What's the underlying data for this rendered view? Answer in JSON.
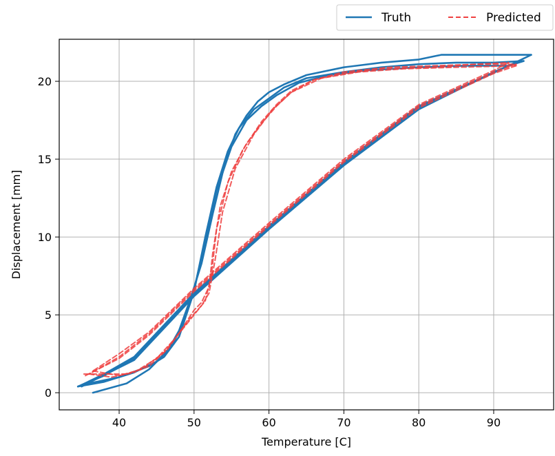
{
  "chart_data": {
    "type": "line",
    "title": "",
    "xlabel": "Temperature [C]",
    "ylabel": "Displacement [mm]",
    "xlim": [
      32,
      98
    ],
    "ylim": [
      -1.1,
      22.7
    ],
    "xticks": [
      40,
      50,
      60,
      70,
      80,
      90
    ],
    "yticks": [
      0,
      5,
      10,
      15,
      20
    ],
    "grid": true,
    "legend": {
      "placement": "top-right, above plot",
      "ncol": 2
    },
    "series": [
      {
        "name": "Truth",
        "color": "#1f77b4",
        "style": "solid",
        "segments": [
          [
            [
              36.5,
              0.0
            ],
            [
              41,
              0.6
            ],
            [
              44,
              1.5
            ],
            [
              46.5,
              2.7
            ],
            [
              48,
              4.0
            ],
            [
              49.5,
              6.0
            ],
            [
              51,
              8.3
            ],
            [
              52.5,
              11.5
            ],
            [
              54,
              14.5
            ],
            [
              55.5,
              16.6
            ],
            [
              57,
              17.8
            ],
            [
              58.5,
              18.7
            ],
            [
              60,
              19.3
            ],
            [
              62,
              19.8
            ],
            [
              65,
              20.4
            ],
            [
              70,
              20.9
            ],
            [
              75,
              21.2
            ],
            [
              80,
              21.4
            ],
            [
              83,
              21.7
            ],
            [
              88,
              21.7
            ],
            [
              95,
              21.7
            ]
          ],
          [
            [
              95,
              21.7
            ],
            [
              92,
              21.0
            ],
            [
              80,
              18.4
            ],
            [
              70,
              14.8
            ],
            [
              60,
              10.7
            ],
            [
              50,
              6.4
            ],
            [
              42,
              2.3
            ],
            [
              38,
              1.2
            ],
            [
              35,
              0.5
            ]
          ],
          [
            [
              35,
              0.5
            ],
            [
              40,
              1.0
            ],
            [
              44,
              1.7
            ],
            [
              46,
              2.3
            ],
            [
              48,
              3.6
            ],
            [
              50,
              6.5
            ],
            [
              51.5,
              10.0
            ],
            [
              53,
              13.2
            ],
            [
              54.5,
              15.5
            ],
            [
              56,
              17.0
            ],
            [
              58,
              18.2
            ],
            [
              60,
              18.9
            ],
            [
              62,
              19.6
            ],
            [
              65,
              20.2
            ],
            [
              70,
              20.6
            ],
            [
              75,
              20.9
            ],
            [
              80,
              21.1
            ],
            [
              85,
              21.2
            ],
            [
              90,
              21.2
            ],
            [
              94,
              21.3
            ]
          ],
          [
            [
              94,
              21.3
            ],
            [
              92,
              21.0
            ],
            [
              80,
              18.3
            ],
            [
              70,
              14.7
            ],
            [
              60,
              10.6
            ],
            [
              50,
              6.3
            ],
            [
              42,
              2.2
            ],
            [
              38,
              1.1
            ],
            [
              34.5,
              0.4
            ]
          ],
          [
            [
              34.5,
              0.4
            ],
            [
              38,
              0.7
            ],
            [
              42,
              1.3
            ],
            [
              45,
              2.0
            ],
            [
              47,
              3.0
            ],
            [
              48.5,
              4.4
            ],
            [
              50,
              6.6
            ],
            [
              51.5,
              9.8
            ],
            [
              53,
              13.0
            ],
            [
              55,
              15.8
            ],
            [
              57,
              17.5
            ],
            [
              59,
              18.4
            ],
            [
              61,
              19.1
            ],
            [
              64,
              19.9
            ],
            [
              68,
              20.4
            ],
            [
              73,
              20.7
            ],
            [
              80,
              20.9
            ],
            [
              86,
              21.0
            ],
            [
              92,
              21.0
            ]
          ],
          [
            [
              92,
              21.0
            ],
            [
              90,
              20.6
            ],
            [
              80,
              18.2
            ],
            [
              70,
              14.6
            ],
            [
              60,
              10.5
            ],
            [
              50,
              6.2
            ],
            [
              42,
              2.1
            ],
            [
              37,
              0.9
            ],
            [
              35,
              0.4
            ]
          ]
        ]
      },
      {
        "name": "Predicted",
        "color": "#ef4040",
        "style": "dashed",
        "segments": [
          [
            [
              35.3,
              1.2
            ],
            [
              38,
              1.2
            ],
            [
              41,
              1.2
            ],
            [
              44,
              1.7
            ],
            [
              46.5,
              2.8
            ],
            [
              48.5,
              4.2
            ],
            [
              50,
              5.3
            ],
            [
              51,
              5.8
            ],
            [
              52,
              6.8
            ],
            [
              52.5,
              9.0
            ],
            [
              53.5,
              12.0
            ],
            [
              55,
              14.2
            ],
            [
              57,
              16.0
            ],
            [
              59,
              17.3
            ],
            [
              61,
              18.4
            ],
            [
              63,
              19.3
            ],
            [
              66,
              20.1
            ],
            [
              70,
              20.5
            ],
            [
              75,
              20.8
            ],
            [
              82,
              20.9
            ],
            [
              88,
              21.1
            ],
            [
              92,
              21.2
            ]
          ],
          [
            [
              92,
              21.2
            ],
            [
              90,
              20.7
            ],
            [
              80,
              18.5
            ],
            [
              70,
              15.0
            ],
            [
              60,
              10.9
            ],
            [
              50,
              6.7
            ],
            [
              44,
              3.9
            ],
            [
              40,
              2.5
            ],
            [
              36.5,
              1.4
            ]
          ],
          [
            [
              36.5,
              1.4
            ],
            [
              40,
              1.1
            ],
            [
              43,
              1.5
            ],
            [
              46,
              2.6
            ],
            [
              48,
              3.8
            ],
            [
              50,
              5.0
            ],
            [
              51.5,
              5.9
            ],
            [
              52.3,
              7.5
            ],
            [
              53,
              10.5
            ],
            [
              54.5,
              13.5
            ],
            [
              56.5,
              15.6
            ],
            [
              59,
              17.4
            ],
            [
              61,
              18.5
            ],
            [
              63,
              19.4
            ],
            [
              66,
              20.1
            ],
            [
              70,
              20.6
            ],
            [
              76,
              20.9
            ],
            [
              82,
              21.0
            ],
            [
              88,
              21.1
            ],
            [
              93,
              21.1
            ]
          ],
          [
            [
              93,
              21.1
            ],
            [
              90,
              20.6
            ],
            [
              80,
              18.4
            ],
            [
              70,
              14.9
            ],
            [
              60,
              10.8
            ],
            [
              50,
              6.6
            ],
            [
              44,
              3.8
            ],
            [
              40,
              2.3
            ],
            [
              36,
              1.2
            ]
          ],
          [
            [
              36,
              1.2
            ],
            [
              39,
              1.0
            ],
            [
              42,
              1.3
            ],
            [
              45,
              2.2
            ],
            [
              47.5,
              3.5
            ],
            [
              49.5,
              4.8
            ],
            [
              51,
              5.6
            ],
            [
              52,
              6.4
            ],
            [
              52.8,
              8.5
            ],
            [
              53.8,
              11.6
            ],
            [
              55.5,
              14.4
            ],
            [
              58,
              16.6
            ],
            [
              60.5,
              18.2
            ],
            [
              63,
              19.3
            ],
            [
              67,
              20.2
            ],
            [
              72,
              20.6
            ],
            [
              78,
              20.8
            ],
            [
              85,
              20.9
            ],
            [
              93,
              21.0
            ]
          ],
          [
            [
              93,
              21.0
            ],
            [
              90,
              20.5
            ],
            [
              80,
              18.3
            ],
            [
              70,
              14.8
            ],
            [
              60,
              10.7
            ],
            [
              50,
              6.5
            ],
            [
              44,
              3.7
            ],
            [
              40,
              2.2
            ],
            [
              35.5,
              1.1
            ]
          ]
        ]
      }
    ]
  }
}
